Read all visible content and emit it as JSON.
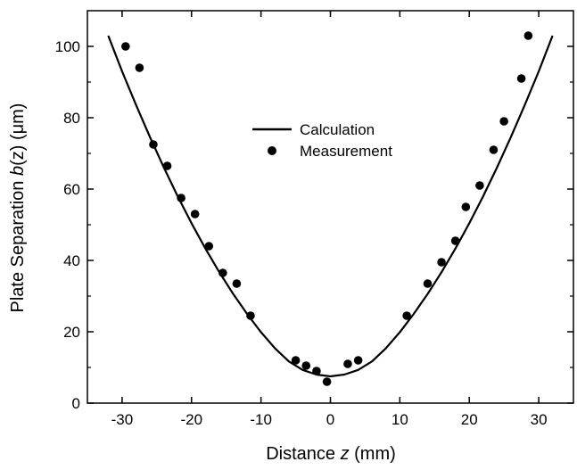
{
  "chart_data": {
    "type": "scatter",
    "title": "",
    "xlabel": {
      "pre": "Distance ",
      "var": "z",
      "post": " (mm)"
    },
    "ylabel": {
      "pre": "Plate Separation ",
      "var": "b",
      "post": "(z) (μm)"
    },
    "xlim": [
      -35,
      35
    ],
    "ylim": [
      0,
      110
    ],
    "x_ticks": [
      -30,
      -20,
      -10,
      0,
      10,
      20,
      30
    ],
    "y_ticks": [
      0,
      20,
      40,
      60,
      80,
      100
    ],
    "grid": false,
    "legend_position": "center",
    "series": [
      {
        "name": "Calculation",
        "kind": "line",
        "x": [
          -32,
          -30,
          -28,
          -26,
          -24,
          -22,
          -20,
          -18,
          -16,
          -14,
          -12,
          -10,
          -8,
          -6,
          -4,
          -2,
          0,
          2,
          4,
          6,
          8,
          10,
          12,
          14,
          16,
          18,
          20,
          22,
          24,
          26,
          28,
          30,
          32
        ],
        "y": [
          103,
          93,
          83.6,
          74.6,
          66.1,
          58.0,
          50.4,
          43.3,
          36.7,
          30.6,
          25.0,
          19.9,
          15.4,
          11.7,
          9.3,
          8.0,
          7.5,
          8.0,
          9.3,
          11.7,
          15.4,
          19.9,
          25.0,
          30.6,
          36.7,
          43.3,
          50.4,
          58.0,
          66.1,
          74.6,
          83.6,
          93,
          103
        ]
      },
      {
        "name": "Measurement",
        "kind": "marker",
        "x": [
          -29.5,
          -27.5,
          -25.5,
          -23.5,
          -21.5,
          -19.5,
          -17.5,
          -15.5,
          -13.5,
          -11.5,
          -5,
          -3.5,
          -2,
          -0.5,
          2.5,
          4,
          11,
          14,
          16,
          18,
          19.5,
          21.5,
          23.5,
          25,
          27.5,
          28.5
        ],
        "y": [
          100,
          94,
          72.5,
          66.5,
          57.5,
          53,
          44,
          36.5,
          33.5,
          24.5,
          12,
          10.5,
          9,
          6,
          11,
          12,
          24.5,
          33.5,
          39.5,
          45.5,
          55,
          61,
          71,
          79,
          91,
          103
        ]
      }
    ]
  }
}
